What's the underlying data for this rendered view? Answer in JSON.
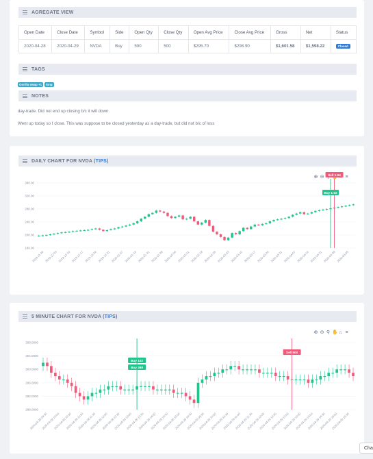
{
  "aggregate": {
    "title": "AGREGATE VIEW",
    "columns": [
      "Open Date",
      "Close Date",
      "Symbol",
      "Side",
      "Open Qty",
      "Close Qty",
      "Open Avg Price",
      "Close Avg Price",
      "Gross",
      "Net",
      "Status"
    ],
    "row": {
      "open_date": "2020-04-28",
      "close_date": "2020-04-29",
      "symbol": "NVDA",
      "side": "Buy",
      "open_qty": "500",
      "close_qty": "500",
      "open_avg": "$295.70",
      "close_avg": "$298.90",
      "gross": "$1,601.58",
      "net": "$1,598.22",
      "status": "Closed"
    }
  },
  "tags": {
    "title": "TAGS",
    "items": [
      "Gorilla swap +1",
      "long"
    ]
  },
  "notes": {
    "title": "NOTES",
    "lines": [
      "day-trade. Did not end up closing b/c it will down.",
      "Went up today so I close. This was suppose to be closed yesterday as a day-trade, but did not b/c of loss"
    ]
  },
  "daily": {
    "title_prefix": "DAILY CHART FOR NVDA (",
    "tips": "TIPS",
    "title_suffix": ")",
    "buy_label": "Buy 1:02",
    "sell_label": "Sell 1:04"
  },
  "five_min": {
    "title_prefix": "5 MINUTE CHART FOR NVDA (",
    "tips": "TIPS",
    "title_suffix": ")",
    "buy_label_1": "Buy 102",
    "buy_label_2": "Buy 398",
    "sell_label": "Sell 500"
  },
  "toolbar_icons": [
    "zoom-in-icon",
    "zoom-out-icon",
    "magnifier-icon",
    "pan-icon",
    "home-icon",
    "menu-icon"
  ],
  "chat": {
    "label": "Cha"
  },
  "chart_data": [
    {
      "type": "candlestick",
      "title": "DAILY CHART FOR NVDA (TIPS)",
      "yticks": [
        "380.00",
        "320.00",
        "280.00",
        "240.00",
        "200.00",
        "180.00"
      ],
      "xticks": [
        "2019-11-26",
        "2019-12-03",
        "2019-12-10",
        "2019-12-17",
        "2019-12-24",
        "2019-12-31",
        "2020-01-07",
        "2020-01-14",
        "2020-01-21",
        "2020-01-28",
        "2020-02-04",
        "2020-02-11",
        "2020-02-18",
        "2020-02-25",
        "2020-03-03",
        "2020-03-10",
        "2020-03-17",
        "2020-03-24",
        "2020-03-31",
        "2020-04-07",
        "2020-04-14",
        "2020-04-21",
        "2020-04-28",
        "2020-05-05"
      ],
      "closes": [
        218,
        219,
        220,
        222,
        224,
        226,
        228,
        229,
        230,
        232,
        233,
        234,
        235,
        236,
        238,
        240,
        236,
        232,
        235,
        238,
        240,
        244,
        246,
        249,
        252,
        256,
        262,
        270,
        276,
        284,
        288,
        295,
        292,
        288,
        278,
        272,
        276,
        280,
        268,
        270,
        276,
        262,
        252,
        258,
        266,
        248,
        230,
        222,
        214,
        204,
        212,
        226,
        222,
        232,
        242,
        238,
        246,
        252,
        250,
        254,
        256,
        262,
        266,
        268,
        270,
        272,
        276,
        282,
        286,
        290,
        284,
        286,
        290,
        294,
        296,
        298,
        300,
        302,
        304,
        306,
        308,
        310,
        312,
        314
      ],
      "buy_index": 77,
      "sell_index": 78,
      "colors": {
        "up": "#23c38e",
        "down": "#ef5b7a"
      }
    },
    {
      "type": "candlestick",
      "title": "5 MINUTE CHART FOR NVDA (TIPS)",
      "yticks": [
        "308.0000",
        "304.0000",
        "300.0000",
        "296.0000",
        "292.0000",
        "288.0000"
      ],
      "xticks": [
        "2020-04-28 09:30",
        "2020-04-28 10:00",
        "2020-04-28 10:30",
        "2020-04-28 11:00",
        "2020-04-28 11:30",
        "2020-04-28 12:00",
        "2020-04-28 12:30",
        "2020-04-28 13:00",
        "2020-04-28 13:30",
        "2020-04-28 14:00",
        "2020-04-28 14:30",
        "2020-04-28 15:00",
        "2020-04-28 15:30",
        "2020-04-29 09:30",
        "2020-04-29 10:00",
        "2020-04-29 10:30",
        "2020-04-29 11:00",
        "2020-04-29 11:30",
        "2020-04-29 12:00",
        "2020-04-29 12:30",
        "2020-04-29 13:00",
        "2020-04-29 13:30",
        "2020-04-29 14:00",
        "2020-04-29 14:30",
        "2020-04-29 15:00",
        "2020-04-29 15:30"
      ],
      "closes": [
        302,
        301,
        299,
        298,
        297,
        297,
        296,
        295,
        293,
        292,
        291,
        292,
        293,
        293,
        294,
        294,
        295,
        295,
        295,
        294,
        294,
        294,
        294,
        295,
        295,
        295,
        295,
        294,
        294,
        294,
        294,
        294,
        293,
        293,
        293,
        292,
        291,
        290,
        296,
        297,
        298,
        298,
        299,
        299,
        300,
        300,
        301,
        301,
        300,
        300,
        300,
        300,
        300,
        299,
        299,
        299,
        299,
        298,
        298,
        298,
        297,
        297,
        297,
        297,
        297,
        296,
        297,
        297,
        298,
        298,
        299,
        299,
        300,
        300,
        300,
        299,
        298
      ],
      "buy_index": 23,
      "sell_index": 61,
      "colors": {
        "up": "#23c38e",
        "down": "#ef5b7a"
      }
    }
  ]
}
